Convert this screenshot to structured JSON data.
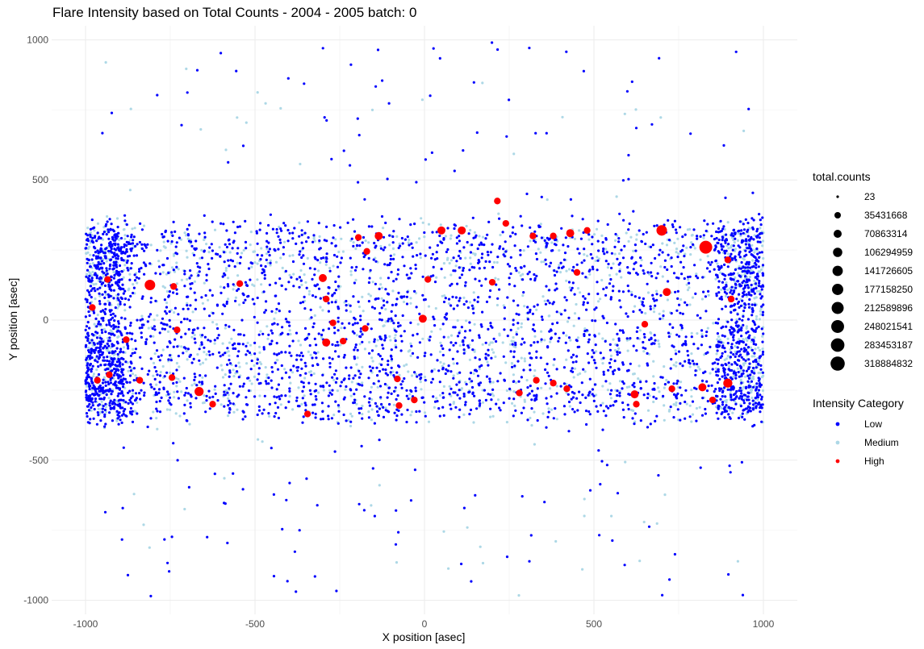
{
  "chart_data": {
    "type": "scatter",
    "title": "Flare Intensity based on Total Counts - 2004 - 2005  batch:  0",
    "xlabel": "X position [asec]",
    "ylabel": "Y position [asec]",
    "xlim": [
      -1100,
      1100
    ],
    "ylim": [
      -1050,
      1050
    ],
    "x_ticks": [
      -1000,
      -500,
      0,
      500,
      1000
    ],
    "y_ticks": [
      -1000,
      -500,
      0,
      500,
      1000
    ],
    "grid": true,
    "legend_position": "right",
    "size_legend": {
      "title": "total.counts",
      "entries": [
        "23",
        "35431668",
        "70863314",
        "106294959",
        "141726605",
        "177158250",
        "212589896",
        "248021541",
        "283453187",
        "318884832"
      ]
    },
    "color_legend": {
      "title": "Intensity Category",
      "entries": [
        {
          "label": "Low",
          "color": "#0000ff"
        },
        {
          "label": "Medium",
          "color": "#add8e6"
        },
        {
          "label": "High",
          "color": "#ff0000"
        }
      ]
    },
    "high_points": [
      {
        "x": -810,
        "y": 125,
        "counts": 150000000
      },
      {
        "x": -980,
        "y": 45,
        "counts": 40000000
      },
      {
        "x": -935,
        "y": 145,
        "counts": 40000000
      },
      {
        "x": -880,
        "y": -70,
        "counts": 40000000
      },
      {
        "x": -930,
        "y": -195,
        "counts": 40000000
      },
      {
        "x": -965,
        "y": -215,
        "counts": 40000000
      },
      {
        "x": -840,
        "y": -215,
        "counts": 40000000
      },
      {
        "x": -745,
        "y": -205,
        "counts": 40000000
      },
      {
        "x": -665,
        "y": -255,
        "counts": 100000000
      },
      {
        "x": -625,
        "y": -300,
        "counts": 40000000
      },
      {
        "x": -730,
        "y": -35,
        "counts": 40000000
      },
      {
        "x": -740,
        "y": 120,
        "counts": 40000000
      },
      {
        "x": -545,
        "y": 130,
        "counts": 40000000
      },
      {
        "x": -300,
        "y": 150,
        "counts": 70000000
      },
      {
        "x": -290,
        "y": 75,
        "counts": 40000000
      },
      {
        "x": -290,
        "y": -80,
        "counts": 70000000
      },
      {
        "x": -345,
        "y": -335,
        "counts": 40000000
      },
      {
        "x": -270,
        "y": -10,
        "counts": 40000000
      },
      {
        "x": -170,
        "y": 245,
        "counts": 40000000
      },
      {
        "x": -195,
        "y": 295,
        "counts": 40000000
      },
      {
        "x": -135,
        "y": 300,
        "counts": 70000000
      },
      {
        "x": -175,
        "y": -30,
        "counts": 40000000
      },
      {
        "x": -240,
        "y": -75,
        "counts": 40000000
      },
      {
        "x": -80,
        "y": -210,
        "counts": 40000000
      },
      {
        "x": -75,
        "y": -305,
        "counts": 40000000
      },
      {
        "x": -30,
        "y": -285,
        "counts": 40000000
      },
      {
        "x": -5,
        "y": 5,
        "counts": 70000000
      },
      {
        "x": 10,
        "y": 145,
        "counts": 40000000
      },
      {
        "x": 50,
        "y": 320,
        "counts": 70000000
      },
      {
        "x": 110,
        "y": 320,
        "counts": 70000000
      },
      {
        "x": 215,
        "y": 425,
        "counts": 40000000
      },
      {
        "x": 200,
        "y": 135,
        "counts": 40000000
      },
      {
        "x": 240,
        "y": 345,
        "counts": 40000000
      },
      {
        "x": 320,
        "y": 300,
        "counts": 40000000
      },
      {
        "x": 380,
        "y": 300,
        "counts": 40000000
      },
      {
        "x": 430,
        "y": 310,
        "counts": 70000000
      },
      {
        "x": 480,
        "y": 320,
        "counts": 40000000
      },
      {
        "x": 450,
        "y": 170,
        "counts": 40000000
      },
      {
        "x": 280,
        "y": -260,
        "counts": 40000000
      },
      {
        "x": 330,
        "y": -215,
        "counts": 40000000
      },
      {
        "x": 380,
        "y": -225,
        "counts": 40000000
      },
      {
        "x": 420,
        "y": -245,
        "counts": 40000000
      },
      {
        "x": 620,
        "y": -265,
        "counts": 70000000
      },
      {
        "x": 625,
        "y": -300,
        "counts": 40000000
      },
      {
        "x": 700,
        "y": 320,
        "counts": 150000000
      },
      {
        "x": 715,
        "y": 100,
        "counts": 70000000
      },
      {
        "x": 730,
        "y": -245,
        "counts": 40000000
      },
      {
        "x": 830,
        "y": 260,
        "counts": 250000000
      },
      {
        "x": 895,
        "y": 215,
        "counts": 40000000
      },
      {
        "x": 905,
        "y": 75,
        "counts": 40000000
      },
      {
        "x": 895,
        "y": -225,
        "counts": 100000000
      },
      {
        "x": 820,
        "y": -240,
        "counts": 70000000
      },
      {
        "x": 850,
        "y": -285,
        "counts": 40000000
      },
      {
        "x": 650,
        "y": -15,
        "counts": 40000000
      }
    ]
  }
}
